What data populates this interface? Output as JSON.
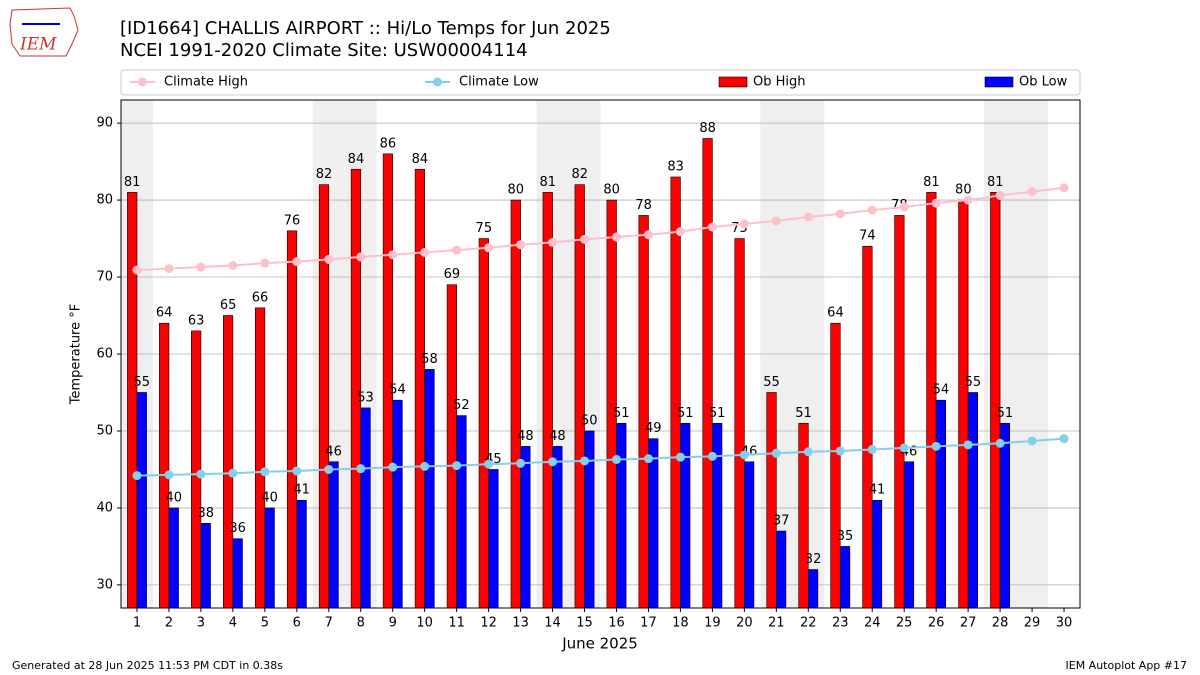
{
  "logo": "IEM",
  "footer_left": "Generated at 28 Jun 2025 11:53 PM CDT in 0.38s",
  "footer_right": "IEM Autoplot App #17",
  "chart_data": {
    "type": "bar",
    "title": "[ID1664] CHALLIS AIRPORT :: Hi/Lo Temps for Jun 2025",
    "subtitle": "NCEI 1991-2020 Climate Site: USW00004114",
    "x_label": "June 2025",
    "y_label": "Temperature °F",
    "x": [
      1,
      2,
      3,
      4,
      5,
      6,
      7,
      8,
      9,
      10,
      11,
      12,
      13,
      14,
      15,
      16,
      17,
      18,
      19,
      20,
      21,
      22,
      23,
      24,
      25,
      26,
      27,
      28,
      29,
      30
    ],
    "xlim": [
      0.5,
      30.5
    ],
    "xticks": [
      1,
      2,
      3,
      4,
      5,
      6,
      7,
      8,
      9,
      10,
      11,
      12,
      13,
      14,
      15,
      16,
      17,
      18,
      19,
      20,
      21,
      22,
      23,
      24,
      25,
      26,
      27,
      28,
      29,
      30
    ],
    "ylim": [
      27,
      93
    ],
    "yticks": [
      30,
      40,
      50,
      60,
      70,
      80,
      90
    ],
    "grid": true,
    "weekend_days": [
      1,
      7,
      8,
      14,
      15,
      21,
      22,
      28,
      29
    ],
    "series": [
      {
        "name": "Climate High",
        "style": "line",
        "color": "#ffc0cb",
        "values": [
          70.9,
          71.1,
          71.3,
          71.5,
          71.8,
          72.0,
          72.3,
          72.6,
          72.9,
          73.2,
          73.5,
          73.8,
          74.2,
          74.5,
          74.9,
          75.2,
          75.5,
          75.9,
          76.5,
          76.9,
          77.3,
          77.8,
          78.2,
          78.7,
          79.1,
          79.6,
          80.0,
          80.6,
          81.1,
          81.6
        ]
      },
      {
        "name": "Climate Low",
        "style": "line",
        "color": "#87ceeb",
        "values": [
          44.2,
          44.3,
          44.4,
          44.5,
          44.7,
          44.8,
          45.0,
          45.1,
          45.3,
          45.4,
          45.5,
          45.7,
          45.8,
          46.0,
          46.1,
          46.3,
          46.4,
          46.6,
          46.7,
          46.9,
          47.1,
          47.3,
          47.4,
          47.6,
          47.8,
          48.0,
          48.2,
          48.4,
          48.7,
          49.0
        ]
      },
      {
        "name": "Ob High",
        "style": "bar",
        "color": "#ff0000",
        "values": [
          81,
          64,
          63,
          65,
          66,
          76,
          82,
          84,
          86,
          84,
          69,
          75,
          80,
          81,
          82,
          80,
          78,
          83,
          88,
          75,
          55,
          51,
          64,
          74,
          78,
          81,
          80,
          81,
          null,
          null
        ]
      },
      {
        "name": "Ob Low",
        "style": "bar",
        "color": "#0000ff",
        "values": [
          55,
          40,
          38,
          36,
          40,
          41,
          46,
          53,
          54,
          58,
          52,
          45,
          48,
          48,
          50,
          51,
          49,
          51,
          51,
          46,
          37,
          32,
          35,
          41,
          46,
          54,
          55,
          51,
          null,
          null
        ]
      }
    ]
  }
}
